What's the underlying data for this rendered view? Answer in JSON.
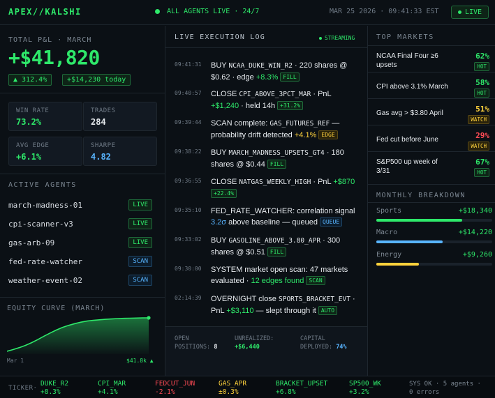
{
  "header": {
    "brand": "APEX//KALSHI",
    "agents_status": "ALL AGENTS LIVE · 24/7",
    "datetime": "MAR 25 2026 · 09:41:33 EST",
    "live_label": "LIVE"
  },
  "pnl": {
    "label": "TOTAL P&L · MARCH",
    "value": "+$41,820",
    "pct_change": "▲ 312.4%",
    "today": "+$14,230 today"
  },
  "stats": [
    {
      "label": "WIN RATE",
      "value": "73.2%",
      "color": "#2ee86a"
    },
    {
      "label": "TRADES",
      "value": "284",
      "color": "#e6eaee"
    },
    {
      "label": "AVG EDGE",
      "value": "+6.1%",
      "color": "#2ee86a"
    },
    {
      "label": "SHARPE",
      "value": "4.82",
      "color": "#58b4ff"
    }
  ],
  "agents": {
    "title": "ACTIVE AGENTS",
    "items": [
      {
        "name": "march-madness-01",
        "status": "LIVE"
      },
      {
        "name": "cpi-scanner-v3",
        "status": "LIVE"
      },
      {
        "name": "gas-arb-09",
        "status": "LIVE"
      },
      {
        "name": "fed-rate-watcher",
        "status": "SCAN"
      },
      {
        "name": "weather-event-02",
        "status": "SCAN"
      }
    ]
  },
  "equity": {
    "title": "EQUITY CURVE (MARCH)",
    "start_label": "Mar 1",
    "end_label": "$41.8k ▲",
    "line_color": "#2ee86a"
  },
  "chart_data": {
    "type": "area",
    "title": "EQUITY CURVE (MARCH)",
    "x_start": "Mar 1",
    "end_value_label": "$41.8k",
    "values": [
      0,
      2.2,
      4.6,
      7.4,
      10.8,
      14.6,
      18.9,
      22.8,
      26.6,
      29.8,
      32.4,
      34.6,
      36.4,
      37.8,
      38.7,
      39.4,
      40.0,
      40.4,
      40.9,
      41.2,
      41.4,
      41.5,
      41.7,
      41.8
    ]
  },
  "log": {
    "title": "LIVE EXECUTION LOG",
    "streaming_label": "STREAMING",
    "entries": [
      {
        "time": "09:41:31",
        "html": "BUY <span class='sym'>NCAA_DUKE_WIN_R2</span> · 220 shares @ $0.62 · edge <span class='green'>+8.3%</span> <span class='badge b-green'>FILL</span>"
      },
      {
        "time": "09:40:57",
        "html": "CLOSE <span class='sym'>CPI_ABOVE_3PCT_MAR</span> · PnL <span class='green'>+$1,240</span> · held 14h <span class='badge b-green'>+31.2%</span>"
      },
      {
        "time": "09:39:44",
        "html": "SCAN complete: <span class='sym'>GAS_FUTURES_REF</span> — probability drift detected <span class='yellow'>+4.1%</span> <span class='badge b-yellow'>EDGE</span>"
      },
      {
        "time": "09:38:22",
        "html": "BUY <span class='sym'>MARCH_MADNESS_UPSETS_GT4</span> · 180 shares @ $0.44 <span class='badge b-green'>FILL</span>"
      },
      {
        "time": "09:36:55",
        "html": "CLOSE <span class='sym'>NATGAS_WEEKLY_HIGH</span> · PnL <span class='green'>+$870</span> <span class='badge b-green'>+22.4%</span>"
      },
      {
        "time": "09:35:10",
        "html": "FED_RATE_WATCHER: correlation signal <span class='blue'>3.2σ</span> above baseline — queued <span class='badge b-blue'>QUEUE</span>"
      },
      {
        "time": "09:33:02",
        "html": "BUY <span class='sym'>GASOLINE_ABOVE_3.80_APR</span> · 300 shares @ $0.51 <span class='badge b-green'>FILL</span>"
      },
      {
        "time": "09:30:00",
        "html": "SYSTEM market open scan: 47 markets evaluated · <span class='green'>12 edges found</span> <span class='badge b-green'>SCAN</span>"
      },
      {
        "time": "02:14:39",
        "html": "OVERNIGHT close <span class='sym'>SPORTS_BRACKET_EVT</span> · PnL <span class='green'>+$3,110</span> — slept through it <span class='badge b-green'>AUTO</span>"
      }
    ],
    "footer": {
      "open_label_1": "OPEN",
      "open_label_2": "POSITIONS:",
      "open_value": "8",
      "unreal_label": "UNREALIZED:",
      "unreal_value": "+$6,440",
      "capital_label_1": "CAPITAL",
      "capital_label_2": "DEPLOYED:",
      "capital_value": "74%"
    }
  },
  "markets": {
    "title": "TOP MARKETS",
    "items": [
      {
        "name": "NCAA Final Four ≥6 upsets",
        "pct": "62%",
        "tag": "HOT",
        "color": "#2ee86a"
      },
      {
        "name": "CPI above 3.1% March",
        "pct": "58%",
        "tag": "HOT",
        "color": "#2ee86a"
      },
      {
        "name": "Gas avg > $3.80 April",
        "pct": "51%",
        "tag": "WATCH",
        "color": "#ffd23c"
      },
      {
        "name": "Fed cut before June",
        "pct": "29%",
        "tag": "WATCH",
        "color": "#ff4b55"
      },
      {
        "name": "S&P500 up week of 3/31",
        "pct": "67%",
        "tag": "HOT",
        "color": "#2ee86a"
      }
    ]
  },
  "breakdown": {
    "title": "MONTHLY BREAKDOWN",
    "items": [
      {
        "name": "Sports",
        "value": "+$18,340",
        "fraction": 0.74,
        "color": "#2ee86a"
      },
      {
        "name": "Macro",
        "value": "+$14,220",
        "fraction": 0.57,
        "color": "#58b4ff"
      },
      {
        "name": "Energy",
        "value": "+$9,260",
        "fraction": 0.37,
        "color": "#ffd23c"
      }
    ]
  },
  "ticker": {
    "label": "TICKER·",
    "items": [
      {
        "sym": "DUKE_R2",
        "chg": "+8.3%",
        "color": "#2ee86a"
      },
      {
        "sym": "CPI_MAR",
        "chg": "+4.1%",
        "color": "#2ee86a"
      },
      {
        "sym": "FEDCUT_JUN",
        "chg": "-2.1%",
        "color": "#ff4b55"
      },
      {
        "sym": "GAS_APR",
        "chg": "±0.3%",
        "color": "#ffd23c"
      },
      {
        "sym": "BRACKET_UPSET",
        "chg": "+6.8%",
        "color": "#2ee86a"
      },
      {
        "sym": "SP500_WK",
        "chg": "+3.2%",
        "color": "#2ee86a"
      }
    ],
    "sys_line1": "SYS OK · 5 agents ·",
    "sys_line2": "0 errors"
  }
}
